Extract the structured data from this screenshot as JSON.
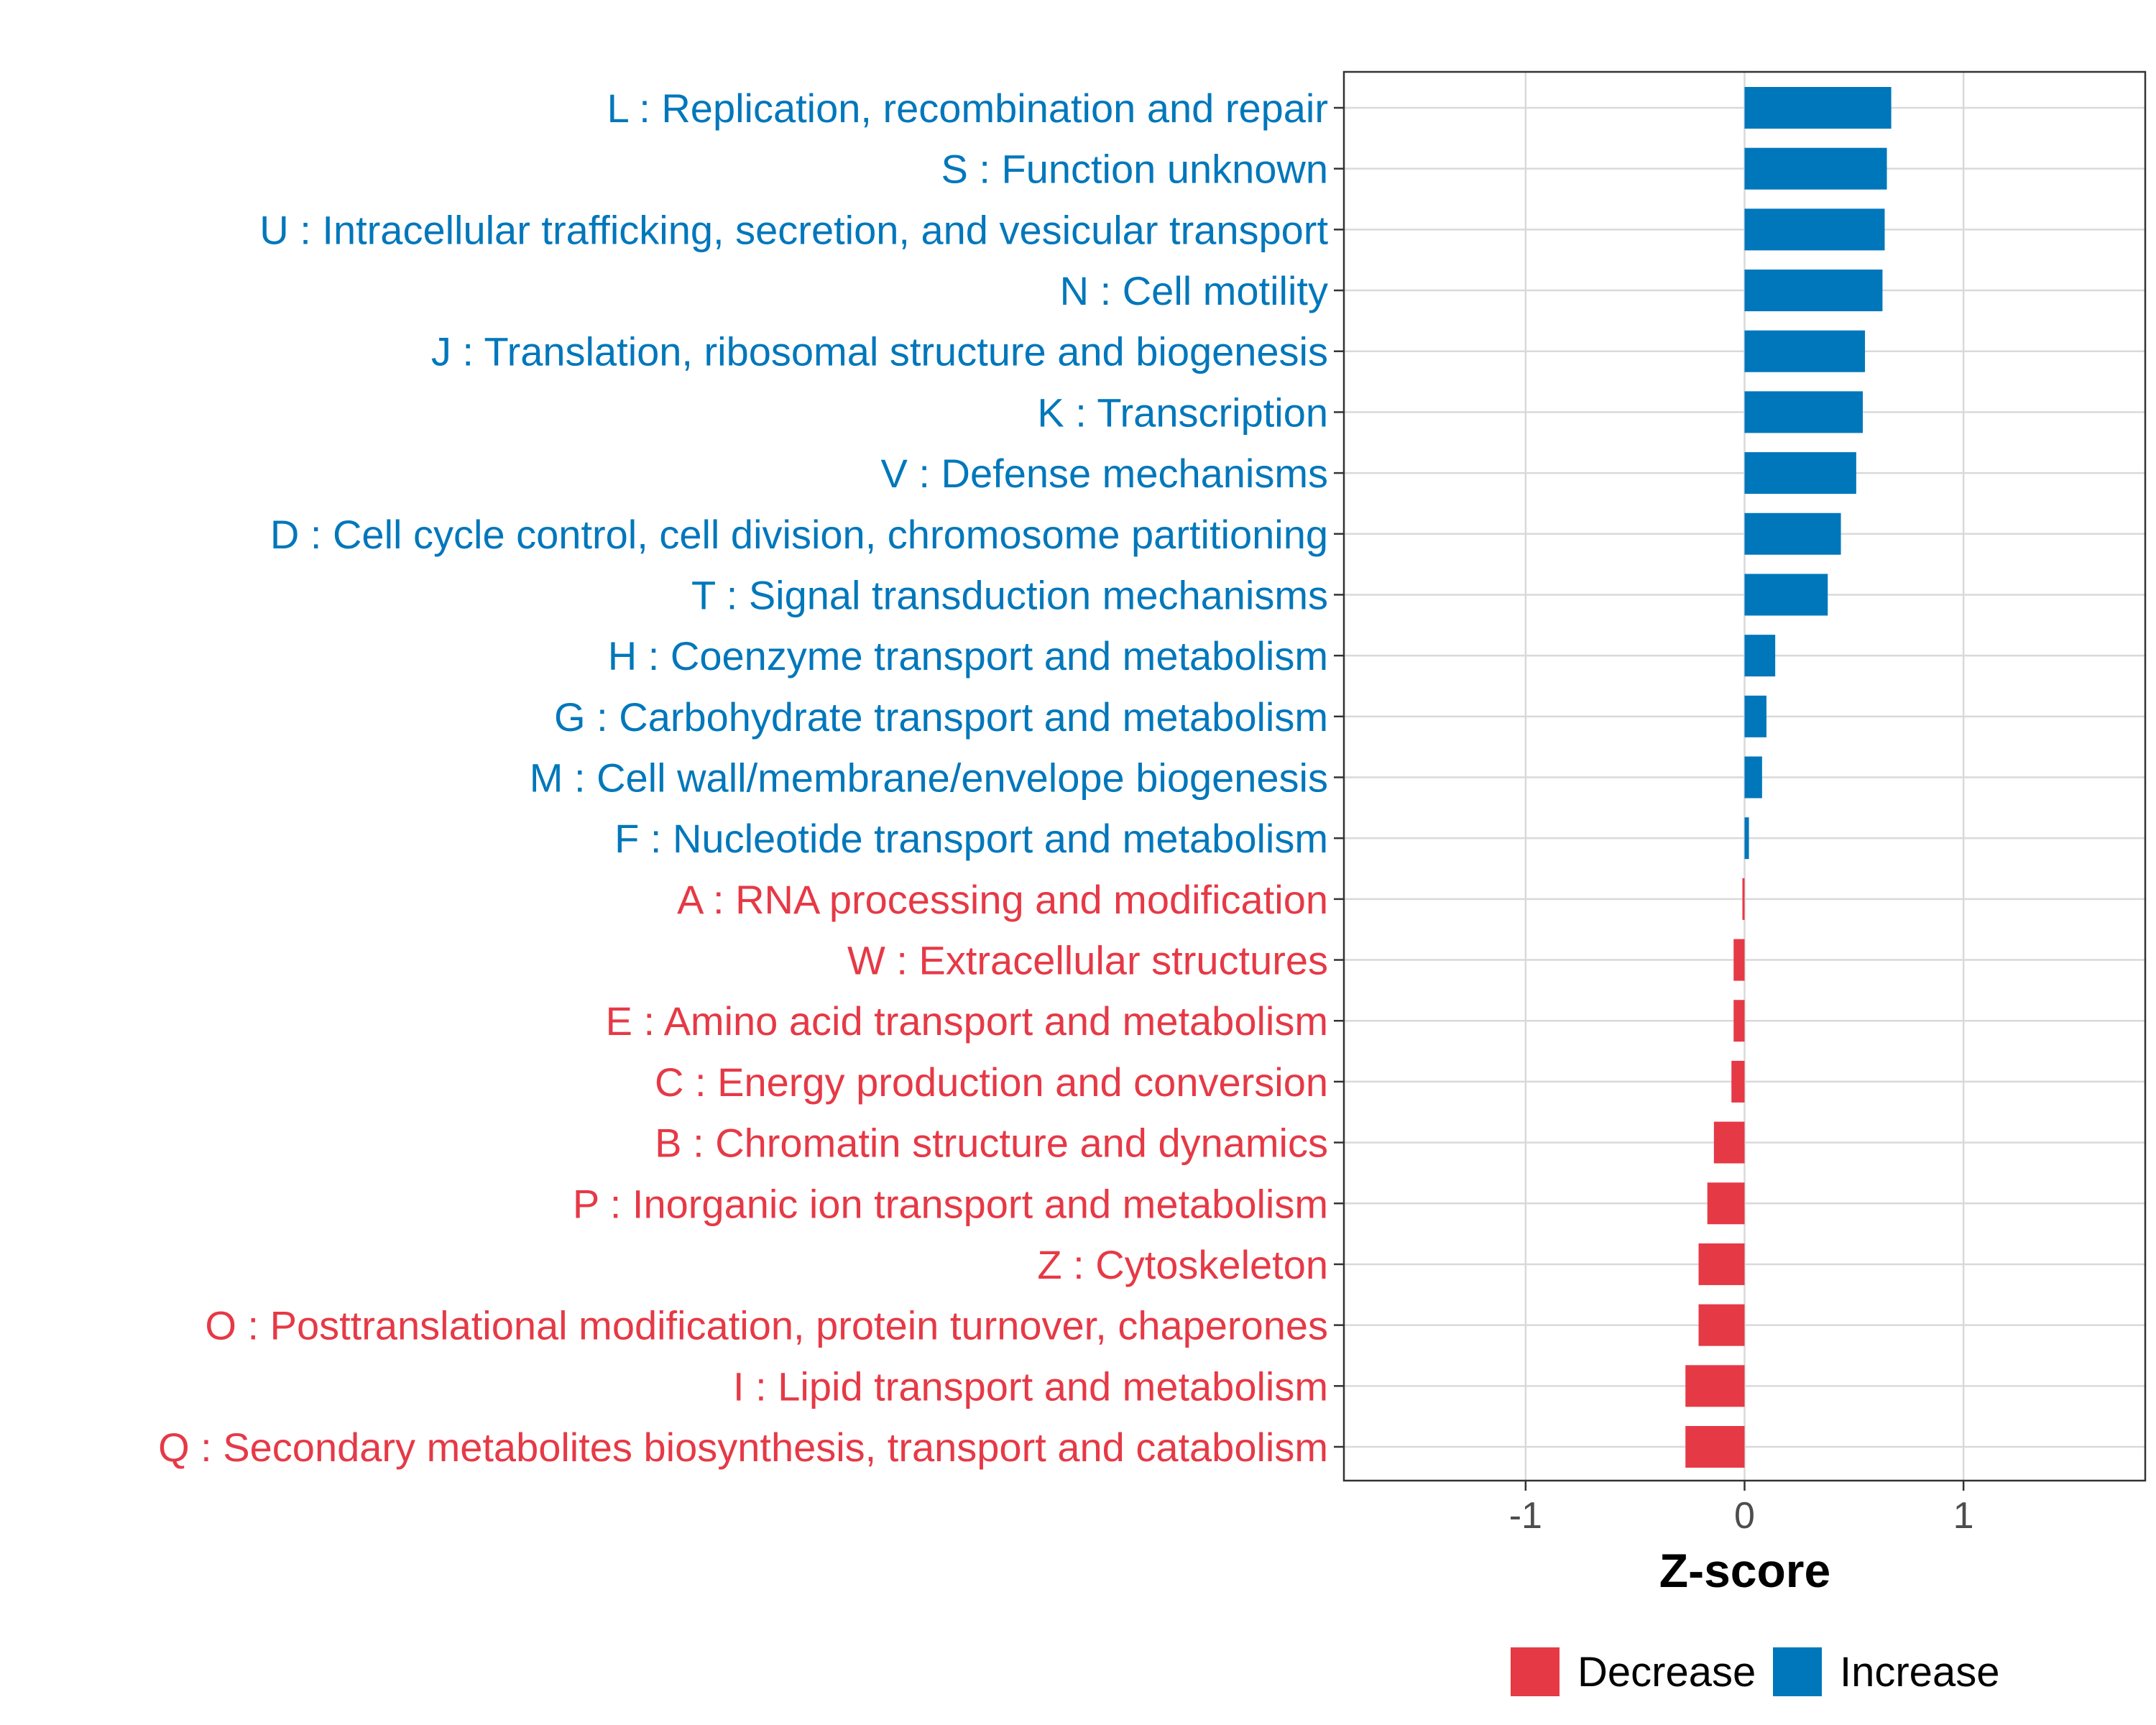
{
  "chart_data": {
    "type": "bar",
    "orientation": "horizontal",
    "title": "",
    "xlabel": "Z-score",
    "ylabel": "",
    "xlim": [
      -1.83,
      1.83
    ],
    "xticks": [
      {
        "value": -1,
        "label": "-1"
      },
      {
        "value": 0,
        "label": "0"
      },
      {
        "value": 1,
        "label": "1"
      }
    ],
    "grid": true,
    "legend_position": "bottom",
    "categories": [
      "L : Replication, recombination and repair",
      "S : Function unknown",
      "U : Intracellular trafficking, secretion, and vesicular transport",
      "N : Cell motility",
      "J : Translation, ribosomal structure and biogenesis",
      "K : Transcription",
      "V : Defense mechanisms",
      "D : Cell cycle control, cell division, chromosome partitioning",
      "T : Signal transduction mechanisms",
      "H : Coenzyme transport and metabolism",
      "G : Carbohydrate transport and metabolism",
      "M : Cell wall/membrane/envelope biogenesis",
      "F : Nucleotide transport and metabolism",
      "A : RNA processing and modification",
      "W : Extracellular structures",
      "E : Amino acid transport and metabolism",
      "C : Energy production and conversion",
      "B : Chromatin structure and dynamics",
      "P : Inorganic ion transport and metabolism",
      "Z : Cytoskeleton",
      "O : Posttranslational modification, protein turnover, chaperones",
      "I : Lipid transport and metabolism",
      "Q : Secondary metabolites biosynthesis, transport and catabolism"
    ],
    "values": [
      0.67,
      0.65,
      0.64,
      0.63,
      0.55,
      0.54,
      0.51,
      0.44,
      0.38,
      0.14,
      0.1,
      0.08,
      0.02,
      -0.01,
      -0.05,
      -0.05,
      -0.06,
      -0.14,
      -0.17,
      -0.21,
      -0.21,
      -0.27,
      -0.27
    ],
    "groups": [
      "Increase",
      "Increase",
      "Increase",
      "Increase",
      "Increase",
      "Increase",
      "Increase",
      "Increase",
      "Increase",
      "Increase",
      "Increase",
      "Increase",
      "Increase",
      "Decrease",
      "Decrease",
      "Decrease",
      "Decrease",
      "Decrease",
      "Decrease",
      "Decrease",
      "Decrease",
      "Decrease",
      "Decrease"
    ],
    "legend": [
      {
        "name": "Decrease",
        "color": "#E63946"
      },
      {
        "name": "Increase",
        "color": "#0077BB"
      }
    ]
  }
}
